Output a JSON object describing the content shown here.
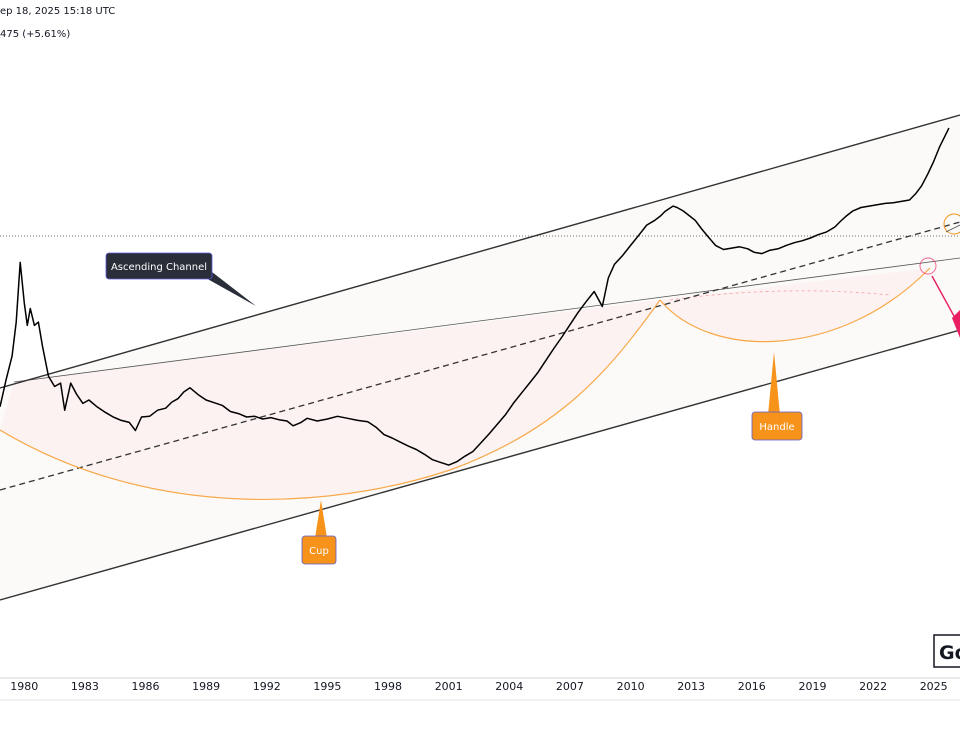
{
  "header": {
    "date_text": "ep 18, 2025 15:18 UTC",
    "change_text": "475 (+5.61%)"
  },
  "logo_text": "Go",
  "chart_data": {
    "type": "line",
    "title": "",
    "xlabel": "",
    "ylabel": "",
    "grid": false,
    "x_tick_labels": [
      "1980",
      "1983",
      "1986",
      "1989",
      "1992",
      "1995",
      "1998",
      "2001",
      "2004",
      "2007",
      "2010",
      "2013",
      "2016",
      "2019",
      "2022",
      "2025"
    ],
    "xlim": [
      1978.8,
      2026.3
    ],
    "ylim": [
      0,
      100
    ],
    "series": [
      {
        "name": "",
        "x": [
          1978.8,
          1979.1,
          1979.4,
          1979.6,
          1979.8,
          1980.0,
          1980.15,
          1980.3,
          1980.5,
          1980.7,
          1980.9,
          1981.2,
          1981.5,
          1981.8,
          1982.0,
          1982.3,
          1982.6,
          1982.9,
          1983.2,
          1983.6,
          1984.0,
          1984.4,
          1984.8,
          1985.2,
          1985.5,
          1985.8,
          1986.2,
          1986.6,
          1987.0,
          1987.3,
          1987.6,
          1987.9,
          1988.2,
          1988.6,
          1989.0,
          1989.4,
          1989.8,
          1990.2,
          1990.6,
          1991.0,
          1991.4,
          1991.8,
          1992.2,
          1992.6,
          1993.0,
          1993.3,
          1993.7,
          1994.0,
          1994.5,
          1995.0,
          1995.5,
          1996.0,
          1996.5,
          1997.0,
          1997.4,
          1997.8,
          1998.2,
          1998.6,
          1999.0,
          1999.4,
          1999.8,
          2000.2,
          2000.6,
          2001.0,
          2001.4,
          2001.8,
          2002.2,
          2002.6,
          2003.0,
          2003.4,
          2003.8,
          2004.2,
          2004.6,
          2005.0,
          2005.4,
          2005.8,
          2006.2,
          2006.6,
          2007.0,
          2007.4,
          2007.8,
          2008.2,
          2008.6,
          2008.9,
          2009.2,
          2009.6,
          2010.0,
          2010.4,
          2010.8,
          2011.2,
          2011.5,
          2011.7,
          2011.9,
          2012.1,
          2012.3,
          2012.6,
          2012.9,
          2013.2,
          2013.5,
          2013.8,
          2014.2,
          2014.6,
          2015.0,
          2015.4,
          2015.8,
          2016.1,
          2016.5,
          2016.9,
          2017.3,
          2017.7,
          2018.1,
          2018.5,
          2018.9,
          2019.3,
          2019.7,
          2020.1,
          2020.4,
          2020.7,
          2021.0,
          2021.4,
          2021.8,
          2022.2,
          2022.6,
          2023.0,
          2023.4,
          2023.8,
          2024.1,
          2024.4,
          2024.7,
          2025.0,
          2025.3,
          2025.6,
          2025.75
        ],
        "y": [
          40.0,
          44.0,
          47.5,
          52.5,
          61.3,
          55.3,
          52.0,
          54.5,
          52.0,
          52.5,
          49.0,
          44.5,
          43.0,
          43.5,
          39.5,
          43.5,
          41.8,
          40.5,
          41.0,
          40.0,
          39.2,
          38.5,
          38.0,
          37.7,
          36.5,
          38.5,
          38.6,
          39.5,
          39.8,
          40.7,
          41.2,
          42.2,
          42.8,
          41.8,
          41.0,
          40.6,
          40.2,
          39.3,
          39.0,
          38.5,
          38.6,
          38.2,
          38.4,
          38.1,
          37.9,
          37.2,
          37.7,
          38.3,
          37.9,
          38.2,
          38.6,
          38.3,
          38.0,
          37.8,
          37.0,
          35.9,
          35.4,
          34.8,
          34.2,
          33.7,
          33.0,
          32.2,
          31.8,
          31.4,
          31.9,
          32.7,
          33.4,
          34.7,
          36.0,
          37.4,
          38.8,
          40.5,
          42.0,
          43.5,
          45.0,
          46.8,
          48.6,
          50.3,
          52.1,
          53.9,
          55.5,
          57.0,
          54.8,
          59.0,
          61.0,
          62.3,
          63.8,
          65.3,
          66.8,
          67.5,
          68.2,
          68.8,
          69.2,
          69.6,
          69.4,
          68.9,
          68.2,
          67.5,
          66.3,
          65.2,
          63.8,
          63.2,
          63.4,
          63.6,
          63.3,
          62.8,
          62.6,
          63.1,
          63.3,
          63.8,
          64.2,
          64.5,
          64.9,
          65.4,
          65.8,
          66.5,
          67.4,
          68.2,
          68.9,
          69.4,
          69.6,
          69.8,
          70.0,
          70.1,
          70.3,
          70.5,
          71.4,
          72.6,
          74.3,
          76.2,
          78.4,
          80.2,
          81.1
        ]
      }
    ],
    "annotations": [
      {
        "text": "Ascending Channel",
        "style": "dark-callout"
      },
      {
        "text": "Cup",
        "style": "orange-callout"
      },
      {
        "text": "Handle",
        "style": "orange-callout"
      }
    ]
  },
  "colors": {
    "price_line": "#000000",
    "channel_line": "#333333",
    "cup_arc": "#f7a94a",
    "cup_fill": "#fdecea",
    "callout_orange": "#f7931a",
    "callout_dark": "#2a2e39",
    "breakdown_arrow": "#e91e63"
  }
}
